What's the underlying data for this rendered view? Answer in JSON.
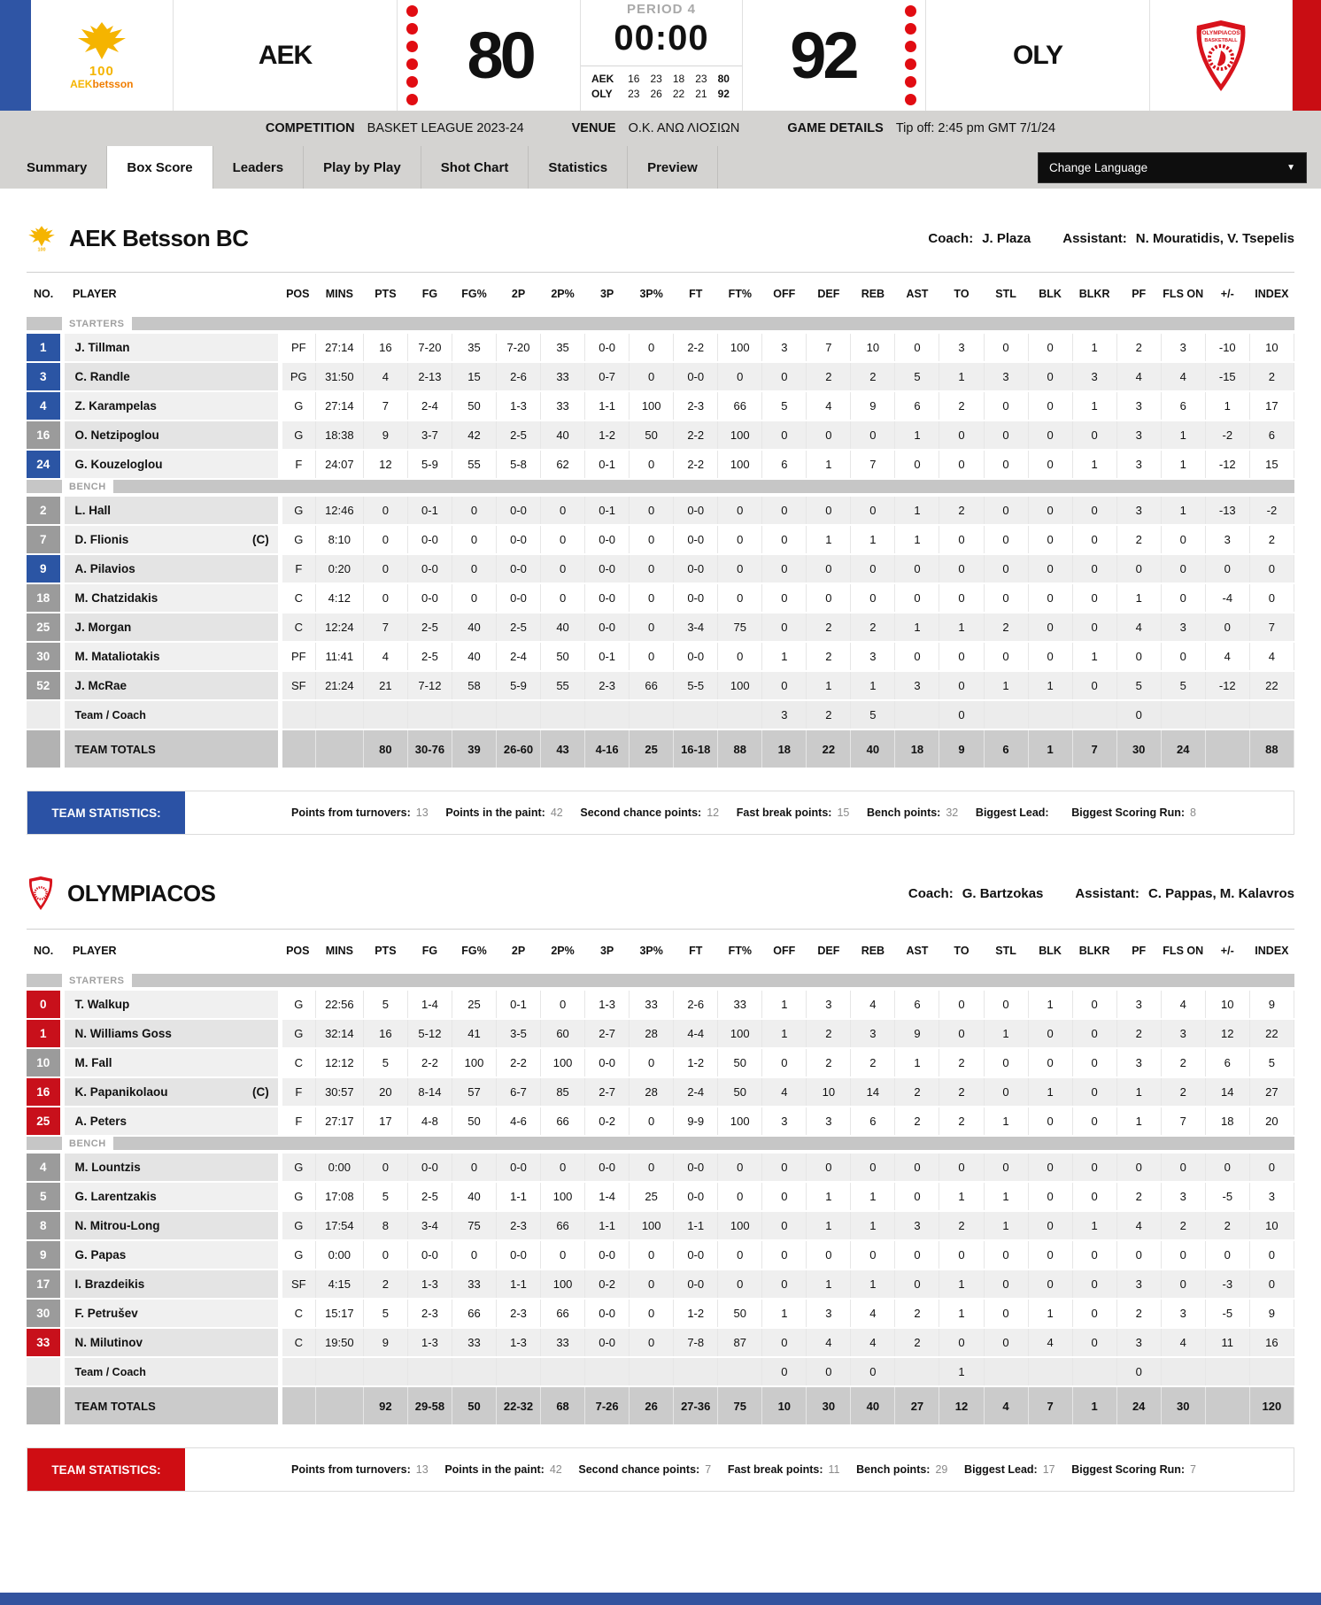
{
  "scoreboard": {
    "home": {
      "code": "AEK",
      "score": "80",
      "logo_line1": "100",
      "logo_line2a": "AEK",
      "logo_line2b": "betsson"
    },
    "away": {
      "code": "OLY",
      "score": "92",
      "logo_text1": "OLYMPIACOS",
      "logo_text2": "BASKETBALL"
    },
    "period_label": "PERIOD 4",
    "clock": "00:00",
    "quarters": [
      {
        "team": "AEK",
        "q": [
          "16",
          "23",
          "18",
          "23"
        ],
        "total": "80"
      },
      {
        "team": "OLY",
        "q": [
          "23",
          "26",
          "22",
          "21"
        ],
        "total": "92"
      }
    ]
  },
  "info_bar": {
    "competition_label": "COMPETITION",
    "competition": "BASKET LEAGUE 2023-24",
    "venue_label": "VENUE",
    "venue": "Ο.Κ. ΑΝΩ ΛΙΟΣΙΩΝ",
    "details_label": "GAME DETAILS",
    "details": "Tip off: 2:45 pm GMT 7/1/24"
  },
  "tabs": [
    "Summary",
    "Box Score",
    "Leaders",
    "Play by Play",
    "Shot Chart",
    "Statistics",
    "Preview"
  ],
  "active_tab": "Box Score",
  "language_selector": "Change Language",
  "columns": [
    "NO.",
    "PLAYER",
    "POS",
    "MINS",
    "PTS",
    "FG",
    "FG%",
    "2P",
    "2P%",
    "3P",
    "3P%",
    "FT",
    "FT%",
    "OFF",
    "DEF",
    "REB",
    "AST",
    "TO",
    "STL",
    "BLK",
    "BLKR",
    "PF",
    "FLS ON",
    "+/-",
    "INDEX"
  ],
  "sections": {
    "starters": "STARTERS",
    "bench": "BENCH",
    "team_coach": "Team / Coach",
    "totals": "TEAM TOTALS"
  },
  "teams": [
    {
      "name": "AEK Betsson BC",
      "accent": "#2b55a4",
      "coach_label": "Coach:",
      "coach": "J. Plaza",
      "assistant_label": "Assistant:",
      "assistant": "N. Mouratidis, V. Tsepelis",
      "starters": [
        {
          "no": "1",
          "name": "J. Tillman",
          "cap": "",
          "on": true,
          "pos": "PF",
          "vals": [
            "27:14",
            "16",
            "7-20",
            "35",
            "7-20",
            "35",
            "0-0",
            "0",
            "2-2",
            "100",
            "3",
            "7",
            "10",
            "0",
            "3",
            "0",
            "0",
            "1",
            "2",
            "3",
            "-10",
            "10"
          ]
        },
        {
          "no": "3",
          "name": "C. Randle",
          "cap": "",
          "on": true,
          "pos": "PG",
          "vals": [
            "31:50",
            "4",
            "2-13",
            "15",
            "2-6",
            "33",
            "0-7",
            "0",
            "0-0",
            "0",
            "0",
            "2",
            "2",
            "5",
            "1",
            "3",
            "0",
            "3",
            "4",
            "4",
            "-15",
            "2"
          ]
        },
        {
          "no": "4",
          "name": "Z. Karampelas",
          "cap": "",
          "on": true,
          "pos": "G",
          "vals": [
            "27:14",
            "7",
            "2-4",
            "50",
            "1-3",
            "33",
            "1-1",
            "100",
            "2-3",
            "66",
            "5",
            "4",
            "9",
            "6",
            "2",
            "0",
            "0",
            "1",
            "3",
            "6",
            "1",
            "17"
          ]
        },
        {
          "no": "16",
          "name": "O. Netzipoglou",
          "cap": "",
          "on": false,
          "pos": "G",
          "vals": [
            "18:38",
            "9",
            "3-7",
            "42",
            "2-5",
            "40",
            "1-2",
            "50",
            "2-2",
            "100",
            "0",
            "0",
            "0",
            "1",
            "0",
            "0",
            "0",
            "0",
            "3",
            "1",
            "-2",
            "6"
          ]
        },
        {
          "no": "24",
          "name": "G. Kouzeloglou",
          "cap": "",
          "on": true,
          "pos": "F",
          "vals": [
            "24:07",
            "12",
            "5-9",
            "55",
            "5-8",
            "62",
            "0-1",
            "0",
            "2-2",
            "100",
            "6",
            "1",
            "7",
            "0",
            "0",
            "0",
            "0",
            "1",
            "3",
            "1",
            "-12",
            "15"
          ]
        }
      ],
      "bench": [
        {
          "no": "2",
          "name": "L. Hall",
          "cap": "",
          "on": false,
          "pos": "G",
          "vals": [
            "12:46",
            "0",
            "0-1",
            "0",
            "0-0",
            "0",
            "0-1",
            "0",
            "0-0",
            "0",
            "0",
            "0",
            "0",
            "1",
            "2",
            "0",
            "0",
            "0",
            "3",
            "1",
            "-13",
            "-2"
          ]
        },
        {
          "no": "7",
          "name": "D. Flionis",
          "cap": "(C)",
          "on": false,
          "pos": "G",
          "vals": [
            "8:10",
            "0",
            "0-0",
            "0",
            "0-0",
            "0",
            "0-0",
            "0",
            "0-0",
            "0",
            "0",
            "1",
            "1",
            "1",
            "0",
            "0",
            "0",
            "0",
            "2",
            "0",
            "3",
            "2"
          ]
        },
        {
          "no": "9",
          "name": "A. Pilavios",
          "cap": "",
          "on": true,
          "pos": "F",
          "vals": [
            "0:20",
            "0",
            "0-0",
            "0",
            "0-0",
            "0",
            "0-0",
            "0",
            "0-0",
            "0",
            "0",
            "0",
            "0",
            "0",
            "0",
            "0",
            "0",
            "0",
            "0",
            "0",
            "0",
            "0"
          ]
        },
        {
          "no": "18",
          "name": "M. Chatzidakis",
          "cap": "",
          "on": false,
          "pos": "C",
          "vals": [
            "4:12",
            "0",
            "0-0",
            "0",
            "0-0",
            "0",
            "0-0",
            "0",
            "0-0",
            "0",
            "0",
            "0",
            "0",
            "0",
            "0",
            "0",
            "0",
            "0",
            "1",
            "0",
            "-4",
            "0"
          ]
        },
        {
          "no": "25",
          "name": "J. Morgan",
          "cap": "",
          "on": false,
          "pos": "C",
          "vals": [
            "12:24",
            "7",
            "2-5",
            "40",
            "2-5",
            "40",
            "0-0",
            "0",
            "3-4",
            "75",
            "0",
            "2",
            "2",
            "1",
            "1",
            "2",
            "0",
            "0",
            "4",
            "3",
            "0",
            "7"
          ]
        },
        {
          "no": "30",
          "name": "M. Mataliotakis",
          "cap": "",
          "on": false,
          "pos": "PF",
          "vals": [
            "11:41",
            "4",
            "2-5",
            "40",
            "2-4",
            "50",
            "0-1",
            "0",
            "0-0",
            "0",
            "1",
            "2",
            "3",
            "0",
            "0",
            "0",
            "0",
            "1",
            "0",
            "0",
            "4",
            "4"
          ]
        },
        {
          "no": "52",
          "name": "J. McRae",
          "cap": "",
          "on": false,
          "pos": "SF",
          "vals": [
            "21:24",
            "21",
            "7-12",
            "58",
            "5-9",
            "55",
            "2-3",
            "66",
            "5-5",
            "100",
            "0",
            "1",
            "1",
            "3",
            "0",
            "1",
            "1",
            "0",
            "5",
            "5",
            "-12",
            "22"
          ]
        }
      ],
      "team_coach_vals": [
        "",
        "",
        "",
        "",
        "",
        "",
        "",
        "",
        "",
        "",
        "3",
        "2",
        "5",
        "",
        "0",
        "",
        "",
        "",
        "0",
        "",
        "",
        ""
      ],
      "totals_vals": [
        "",
        "80",
        "30-76",
        "39",
        "26-60",
        "43",
        "4-16",
        "25",
        "16-18",
        "88",
        "18",
        "22",
        "40",
        "18",
        "9",
        "6",
        "1",
        "7",
        "30",
        "24",
        "",
        "88"
      ],
      "stats_title": "TEAM STATISTICS:",
      "stats": [
        {
          "label": "Points from turnovers:",
          "value": "13"
        },
        {
          "label": "Points in the paint:",
          "value": "42"
        },
        {
          "label": "Second chance points:",
          "value": "12"
        },
        {
          "label": "Fast break points:",
          "value": "15"
        },
        {
          "label": "Bench points:",
          "value": "32"
        },
        {
          "label": "Biggest Lead:",
          "value": ""
        },
        {
          "label": "Biggest Scoring Run:",
          "value": "8"
        }
      ]
    },
    {
      "name": "OLYMPIACOS",
      "accent": "#c8101b",
      "coach_label": "Coach:",
      "coach": "G. Bartzokas",
      "assistant_label": "Assistant:",
      "assistant": "C. Pappas, M. Kalavros",
      "starters": [
        {
          "no": "0",
          "name": "T. Walkup",
          "cap": "",
          "on": true,
          "pos": "G",
          "vals": [
            "22:56",
            "5",
            "1-4",
            "25",
            "0-1",
            "0",
            "1-3",
            "33",
            "2-6",
            "33",
            "1",
            "3",
            "4",
            "6",
            "0",
            "0",
            "1",
            "0",
            "3",
            "4",
            "10",
            "9"
          ]
        },
        {
          "no": "1",
          "name": "N. Williams Goss",
          "cap": "",
          "on": true,
          "pos": "G",
          "vals": [
            "32:14",
            "16",
            "5-12",
            "41",
            "3-5",
            "60",
            "2-7",
            "28",
            "4-4",
            "100",
            "1",
            "2",
            "3",
            "9",
            "0",
            "1",
            "0",
            "0",
            "2",
            "3",
            "12",
            "22"
          ]
        },
        {
          "no": "10",
          "name": "M. Fall",
          "cap": "",
          "on": false,
          "pos": "C",
          "vals": [
            "12:12",
            "5",
            "2-2",
            "100",
            "2-2",
            "100",
            "0-0",
            "0",
            "1-2",
            "50",
            "0",
            "2",
            "2",
            "1",
            "2",
            "0",
            "0",
            "0",
            "3",
            "2",
            "6",
            "5"
          ]
        },
        {
          "no": "16",
          "name": "K. Papanikolaou",
          "cap": "(C)",
          "on": true,
          "pos": "F",
          "vals": [
            "30:57",
            "20",
            "8-14",
            "57",
            "6-7",
            "85",
            "2-7",
            "28",
            "2-4",
            "50",
            "4",
            "10",
            "14",
            "2",
            "2",
            "0",
            "1",
            "0",
            "1",
            "2",
            "14",
            "27"
          ]
        },
        {
          "no": "25",
          "name": "A. Peters",
          "cap": "",
          "on": true,
          "pos": "F",
          "vals": [
            "27:17",
            "17",
            "4-8",
            "50",
            "4-6",
            "66",
            "0-2",
            "0",
            "9-9",
            "100",
            "3",
            "3",
            "6",
            "2",
            "2",
            "1",
            "0",
            "0",
            "1",
            "7",
            "18",
            "20"
          ]
        }
      ],
      "bench": [
        {
          "no": "4",
          "name": "M. Lountzis",
          "cap": "",
          "on": false,
          "pos": "G",
          "vals": [
            "0:00",
            "0",
            "0-0",
            "0",
            "0-0",
            "0",
            "0-0",
            "0",
            "0-0",
            "0",
            "0",
            "0",
            "0",
            "0",
            "0",
            "0",
            "0",
            "0",
            "0",
            "0",
            "0",
            "0"
          ]
        },
        {
          "no": "5",
          "name": "G. Larentzakis",
          "cap": "",
          "on": false,
          "pos": "G",
          "vals": [
            "17:08",
            "5",
            "2-5",
            "40",
            "1-1",
            "100",
            "1-4",
            "25",
            "0-0",
            "0",
            "0",
            "1",
            "1",
            "0",
            "1",
            "1",
            "0",
            "0",
            "2",
            "3",
            "-5",
            "3"
          ]
        },
        {
          "no": "8",
          "name": "N. Mitrou-Long",
          "cap": "",
          "on": false,
          "pos": "G",
          "vals": [
            "17:54",
            "8",
            "3-4",
            "75",
            "2-3",
            "66",
            "1-1",
            "100",
            "1-1",
            "100",
            "0",
            "1",
            "1",
            "3",
            "2",
            "1",
            "0",
            "1",
            "4",
            "2",
            "2",
            "10"
          ]
        },
        {
          "no": "9",
          "name": "G. Papas",
          "cap": "",
          "on": false,
          "pos": "G",
          "vals": [
            "0:00",
            "0",
            "0-0",
            "0",
            "0-0",
            "0",
            "0-0",
            "0",
            "0-0",
            "0",
            "0",
            "0",
            "0",
            "0",
            "0",
            "0",
            "0",
            "0",
            "0",
            "0",
            "0",
            "0"
          ]
        },
        {
          "no": "17",
          "name": "I. Brazdeikis",
          "cap": "",
          "on": false,
          "pos": "SF",
          "vals": [
            "4:15",
            "2",
            "1-3",
            "33",
            "1-1",
            "100",
            "0-2",
            "0",
            "0-0",
            "0",
            "0",
            "1",
            "1",
            "0",
            "1",
            "0",
            "0",
            "0",
            "3",
            "0",
            "-3",
            "0"
          ]
        },
        {
          "no": "30",
          "name": "F. Petrušev",
          "cap": "",
          "on": false,
          "pos": "C",
          "vals": [
            "15:17",
            "5",
            "2-3",
            "66",
            "2-3",
            "66",
            "0-0",
            "0",
            "1-2",
            "50",
            "1",
            "3",
            "4",
            "2",
            "1",
            "0",
            "1",
            "0",
            "2",
            "3",
            "-5",
            "9"
          ]
        },
        {
          "no": "33",
          "name": "N. Milutinov",
          "cap": "",
          "on": true,
          "pos": "C",
          "vals": [
            "19:50",
            "9",
            "1-3",
            "33",
            "1-3",
            "33",
            "0-0",
            "0",
            "7-8",
            "87",
            "0",
            "4",
            "4",
            "2",
            "0",
            "0",
            "4",
            "0",
            "3",
            "4",
            "11",
            "16"
          ]
        }
      ],
      "team_coach_vals": [
        "",
        "",
        "",
        "",
        "",
        "",
        "",
        "",
        "",
        "",
        "0",
        "0",
        "0",
        "",
        "1",
        "",
        "",
        "",
        "0",
        "",
        "",
        ""
      ],
      "totals_vals": [
        "",
        "92",
        "29-58",
        "50",
        "22-32",
        "68",
        "7-26",
        "26",
        "27-36",
        "75",
        "10",
        "30",
        "40",
        "27",
        "12",
        "4",
        "7",
        "1",
        "24",
        "30",
        "",
        "120"
      ],
      "stats_title": "TEAM STATISTICS:",
      "stats": [
        {
          "label": "Points from turnovers:",
          "value": "13"
        },
        {
          "label": "Points in the paint:",
          "value": "42"
        },
        {
          "label": "Second chance points:",
          "value": "7"
        },
        {
          "label": "Fast break points:",
          "value": "11"
        },
        {
          "label": "Bench points:",
          "value": "29"
        },
        {
          "label": "Biggest Lead:",
          "value": "17"
        },
        {
          "label": "Biggest Scoring Run:",
          "value": "7"
        }
      ]
    }
  ]
}
